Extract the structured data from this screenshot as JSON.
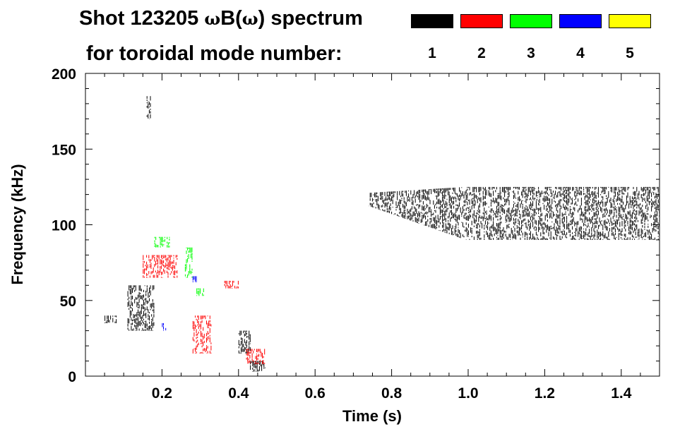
{
  "header": {
    "title_prefix": "Shot 123205 ",
    "title_omega": "ω",
    "title_b": "B(",
    "title_omega2": "ω",
    "title_suffix": ") spectrum",
    "subtitle": "for toroidal mode number:"
  },
  "legend": [
    {
      "label": "1",
      "color": "#000000"
    },
    {
      "label": "2",
      "color": "#ff0000"
    },
    {
      "label": "3",
      "color": "#00ff00"
    },
    {
      "label": "4",
      "color": "#0000ff"
    },
    {
      "label": "5",
      "color": "#ffff00"
    }
  ],
  "chart_data": {
    "type": "scatter",
    "title": "Shot 123205 ωB(ω) spectrum",
    "subtitle": "for toroidal mode number:",
    "xlabel": "Time (s)",
    "ylabel": "Frequency (kHz)",
    "xlim": [
      0.0,
      1.5
    ],
    "ylim": [
      0,
      200
    ],
    "x_ticks": [
      "0.2",
      "0.4",
      "0.6",
      "0.8",
      "1.0",
      "1.2",
      "1.4"
    ],
    "y_ticks": [
      "0",
      "50",
      "100",
      "150",
      "200"
    ],
    "x_tick_values": [
      0.2,
      0.4,
      0.6,
      0.8,
      1.0,
      1.2,
      1.4
    ],
    "y_tick_values": [
      0,
      50,
      100,
      150,
      200
    ],
    "series": [
      {
        "name": "n=1",
        "color": "#000000",
        "regions": [
          {
            "t0": 0.11,
            "t1": 0.18,
            "f0": 30,
            "f1": 60
          },
          {
            "t0": 0.05,
            "t1": 0.08,
            "f0": 35,
            "f1": 40
          },
          {
            "t0": 0.16,
            "t1": 0.17,
            "f0": 170,
            "f1": 185
          },
          {
            "t0": 0.4,
            "t1": 0.43,
            "f0": 15,
            "f1": 30
          },
          {
            "t0": 0.43,
            "t1": 0.47,
            "f0": 3,
            "f1": 10
          },
          {
            "t0": 0.74,
            "t1": 1.5,
            "f0": 90,
            "f1": 125
          }
        ]
      },
      {
        "name": "n=2",
        "color": "#ff0000",
        "regions": [
          {
            "t0": 0.15,
            "t1": 0.24,
            "f0": 65,
            "f1": 80
          },
          {
            "t0": 0.28,
            "t1": 0.33,
            "f0": 15,
            "f1": 40
          },
          {
            "t0": 0.36,
            "t1": 0.4,
            "f0": 58,
            "f1": 63
          },
          {
            "t0": 0.42,
            "t1": 0.47,
            "f0": 8,
            "f1": 18
          }
        ]
      },
      {
        "name": "n=3",
        "color": "#00ff00",
        "regions": [
          {
            "t0": 0.18,
            "t1": 0.22,
            "f0": 85,
            "f1": 92
          },
          {
            "t0": 0.26,
            "t1": 0.28,
            "f0": 65,
            "f1": 85
          },
          {
            "t0": 0.29,
            "t1": 0.31,
            "f0": 53,
            "f1": 58
          }
        ]
      },
      {
        "name": "n=4",
        "color": "#0000ff",
        "regions": [
          {
            "t0": 0.2,
            "t1": 0.21,
            "f0": 30,
            "f1": 35
          },
          {
            "t0": 0.28,
            "t1": 0.29,
            "f0": 62,
            "f1": 66
          }
        ]
      },
      {
        "name": "n=5",
        "color": "#ffff00",
        "regions": []
      }
    ]
  }
}
